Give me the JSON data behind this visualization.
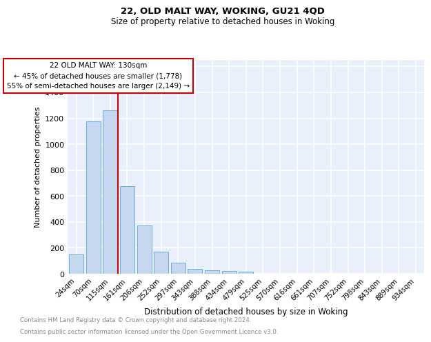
{
  "title1": "22, OLD MALT WAY, WOKING, GU21 4QD",
  "title2": "Size of property relative to detached houses in Woking",
  "xlabel": "Distribution of detached houses by size in Woking",
  "ylabel": "Number of detached properties",
  "footnote1": "Contains HM Land Registry data © Crown copyright and database right 2024.",
  "footnote2": "Contains public sector information licensed under the Open Government Licence v3.0.",
  "bin_labels": [
    "24sqm",
    "70sqm",
    "115sqm",
    "161sqm",
    "206sqm",
    "252sqm",
    "297sqm",
    "343sqm",
    "388sqm",
    "434sqm",
    "479sqm",
    "525sqm",
    "570sqm",
    "616sqm",
    "661sqm",
    "707sqm",
    "752sqm",
    "798sqm",
    "843sqm",
    "889sqm",
    "934sqm"
  ],
  "bar_values": [
    150,
    1175,
    1260,
    675,
    375,
    170,
    85,
    35,
    25,
    20,
    15,
    0,
    0,
    0,
    0,
    0,
    0,
    0,
    0,
    0,
    0
  ],
  "bar_color": "#c5d8f0",
  "bar_edge_color": "#6aaed6",
  "property_label": "22 OLD MALT WAY: 130sqm",
  "annotation_line1": "← 45% of detached houses are smaller (1,778)",
  "annotation_line2": "55% of semi-detached houses are larger (2,149) →",
  "vline_color": "#cc0000",
  "ylim": [
    0,
    1650
  ],
  "yticks": [
    0,
    200,
    400,
    600,
    800,
    1000,
    1200,
    1400,
    1600
  ],
  "bg_color": "#eaf0fb",
  "grid_color": "#ffffff",
  "annotation_box_color": "#ffffff",
  "annotation_box_edge": "#cc0000"
}
